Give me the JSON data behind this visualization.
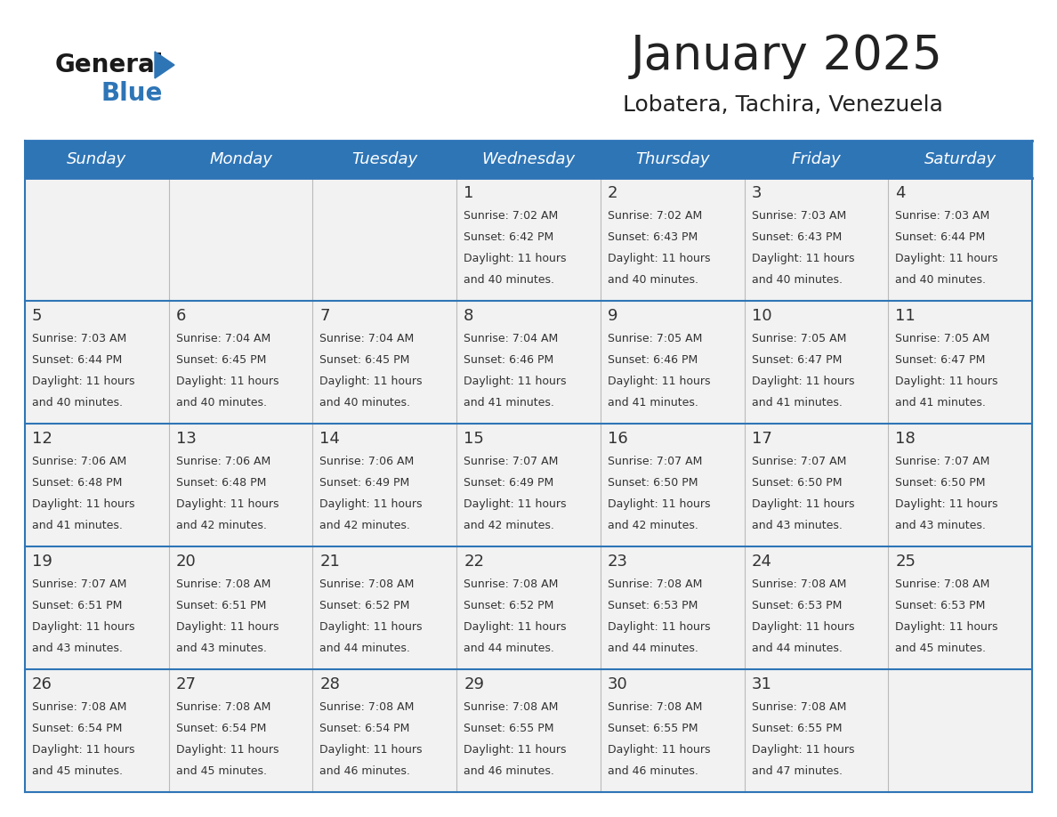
{
  "title": "January 2025",
  "subtitle": "Lobatera, Tachira, Venezuela",
  "header_bg": "#2e75b6",
  "header_text_color": "#ffffff",
  "day_names": [
    "Sunday",
    "Monday",
    "Tuesday",
    "Wednesday",
    "Thursday",
    "Friday",
    "Saturday"
  ],
  "cell_bg": "#f2f2f2",
  "cell_border_color": "#2e75b6",
  "text_color": "#333333",
  "title_color": "#222222",
  "logo_general_color": "#1a1a1a",
  "logo_blue_color": "#2e75b6",
  "weeks": [
    [
      {
        "day": null,
        "sunrise": null,
        "sunset": null,
        "daylight_h": null,
        "daylight_m": null
      },
      {
        "day": null,
        "sunrise": null,
        "sunset": null,
        "daylight_h": null,
        "daylight_m": null
      },
      {
        "day": null,
        "sunrise": null,
        "sunset": null,
        "daylight_h": null,
        "daylight_m": null
      },
      {
        "day": 1,
        "sunrise": "7:02 AM",
        "sunset": "6:42 PM",
        "daylight_h": "11 hours",
        "daylight_m": "and 40 minutes."
      },
      {
        "day": 2,
        "sunrise": "7:02 AM",
        "sunset": "6:43 PM",
        "daylight_h": "11 hours",
        "daylight_m": "and 40 minutes."
      },
      {
        "day": 3,
        "sunrise": "7:03 AM",
        "sunset": "6:43 PM",
        "daylight_h": "11 hours",
        "daylight_m": "and 40 minutes."
      },
      {
        "day": 4,
        "sunrise": "7:03 AM",
        "sunset": "6:44 PM",
        "daylight_h": "11 hours",
        "daylight_m": "and 40 minutes."
      }
    ],
    [
      {
        "day": 5,
        "sunrise": "7:03 AM",
        "sunset": "6:44 PM",
        "daylight_h": "11 hours",
        "daylight_m": "and 40 minutes."
      },
      {
        "day": 6,
        "sunrise": "7:04 AM",
        "sunset": "6:45 PM",
        "daylight_h": "11 hours",
        "daylight_m": "and 40 minutes."
      },
      {
        "day": 7,
        "sunrise": "7:04 AM",
        "sunset": "6:45 PM",
        "daylight_h": "11 hours",
        "daylight_m": "and 40 minutes."
      },
      {
        "day": 8,
        "sunrise": "7:04 AM",
        "sunset": "6:46 PM",
        "daylight_h": "11 hours",
        "daylight_m": "and 41 minutes."
      },
      {
        "day": 9,
        "sunrise": "7:05 AM",
        "sunset": "6:46 PM",
        "daylight_h": "11 hours",
        "daylight_m": "and 41 minutes."
      },
      {
        "day": 10,
        "sunrise": "7:05 AM",
        "sunset": "6:47 PM",
        "daylight_h": "11 hours",
        "daylight_m": "and 41 minutes."
      },
      {
        "day": 11,
        "sunrise": "7:05 AM",
        "sunset": "6:47 PM",
        "daylight_h": "11 hours",
        "daylight_m": "and 41 minutes."
      }
    ],
    [
      {
        "day": 12,
        "sunrise": "7:06 AM",
        "sunset": "6:48 PM",
        "daylight_h": "11 hours",
        "daylight_m": "and 41 minutes."
      },
      {
        "day": 13,
        "sunrise": "7:06 AM",
        "sunset": "6:48 PM",
        "daylight_h": "11 hours",
        "daylight_m": "and 42 minutes."
      },
      {
        "day": 14,
        "sunrise": "7:06 AM",
        "sunset": "6:49 PM",
        "daylight_h": "11 hours",
        "daylight_m": "and 42 minutes."
      },
      {
        "day": 15,
        "sunrise": "7:07 AM",
        "sunset": "6:49 PM",
        "daylight_h": "11 hours",
        "daylight_m": "and 42 minutes."
      },
      {
        "day": 16,
        "sunrise": "7:07 AM",
        "sunset": "6:50 PM",
        "daylight_h": "11 hours",
        "daylight_m": "and 42 minutes."
      },
      {
        "day": 17,
        "sunrise": "7:07 AM",
        "sunset": "6:50 PM",
        "daylight_h": "11 hours",
        "daylight_m": "and 43 minutes."
      },
      {
        "day": 18,
        "sunrise": "7:07 AM",
        "sunset": "6:50 PM",
        "daylight_h": "11 hours",
        "daylight_m": "and 43 minutes."
      }
    ],
    [
      {
        "day": 19,
        "sunrise": "7:07 AM",
        "sunset": "6:51 PM",
        "daylight_h": "11 hours",
        "daylight_m": "and 43 minutes."
      },
      {
        "day": 20,
        "sunrise": "7:08 AM",
        "sunset": "6:51 PM",
        "daylight_h": "11 hours",
        "daylight_m": "and 43 minutes."
      },
      {
        "day": 21,
        "sunrise": "7:08 AM",
        "sunset": "6:52 PM",
        "daylight_h": "11 hours",
        "daylight_m": "and 44 minutes."
      },
      {
        "day": 22,
        "sunrise": "7:08 AM",
        "sunset": "6:52 PM",
        "daylight_h": "11 hours",
        "daylight_m": "and 44 minutes."
      },
      {
        "day": 23,
        "sunrise": "7:08 AM",
        "sunset": "6:53 PM",
        "daylight_h": "11 hours",
        "daylight_m": "and 44 minutes."
      },
      {
        "day": 24,
        "sunrise": "7:08 AM",
        "sunset": "6:53 PM",
        "daylight_h": "11 hours",
        "daylight_m": "and 44 minutes."
      },
      {
        "day": 25,
        "sunrise": "7:08 AM",
        "sunset": "6:53 PM",
        "daylight_h": "11 hours",
        "daylight_m": "and 45 minutes."
      }
    ],
    [
      {
        "day": 26,
        "sunrise": "7:08 AM",
        "sunset": "6:54 PM",
        "daylight_h": "11 hours",
        "daylight_m": "and 45 minutes."
      },
      {
        "day": 27,
        "sunrise": "7:08 AM",
        "sunset": "6:54 PM",
        "daylight_h": "11 hours",
        "daylight_m": "and 45 minutes."
      },
      {
        "day": 28,
        "sunrise": "7:08 AM",
        "sunset": "6:54 PM",
        "daylight_h": "11 hours",
        "daylight_m": "and 46 minutes."
      },
      {
        "day": 29,
        "sunrise": "7:08 AM",
        "sunset": "6:55 PM",
        "daylight_h": "11 hours",
        "daylight_m": "and 46 minutes."
      },
      {
        "day": 30,
        "sunrise": "7:08 AM",
        "sunset": "6:55 PM",
        "daylight_h": "11 hours",
        "daylight_m": "and 46 minutes."
      },
      {
        "day": 31,
        "sunrise": "7:08 AM",
        "sunset": "6:55 PM",
        "daylight_h": "11 hours",
        "daylight_m": "and 47 minutes."
      },
      {
        "day": null,
        "sunrise": null,
        "sunset": null,
        "daylight_h": null,
        "daylight_m": null
      }
    ]
  ]
}
